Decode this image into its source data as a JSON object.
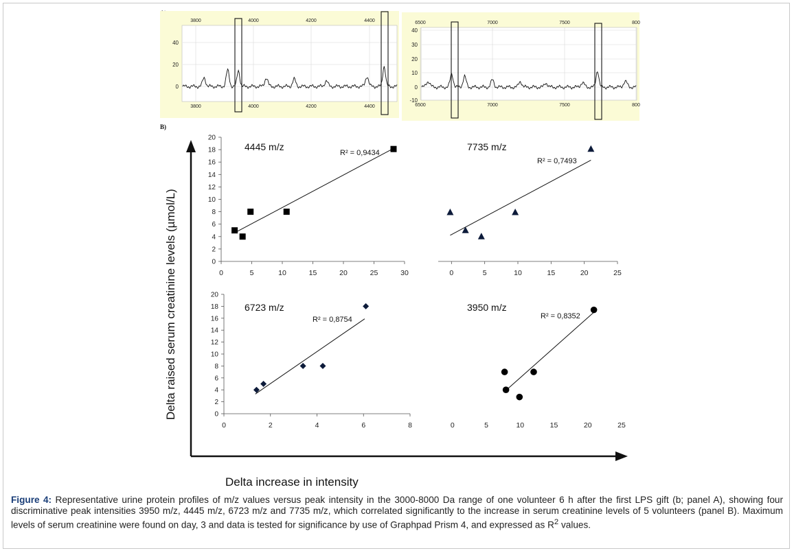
{
  "panelA": {
    "label": "A)",
    "left": {
      "xticks": [
        "3800",
        "4000",
        "4200",
        "4400"
      ],
      "yticks": [
        "40",
        "20",
        "0"
      ],
      "box_at": [
        "3950 m/z",
        "4445 m/z"
      ]
    },
    "right": {
      "xticks": [
        "6500",
        "7000",
        "7500",
        "800"
      ],
      "yticks": [
        "40",
        "30",
        "20",
        "10",
        "0",
        "-10"
      ],
      "box_at": [
        "6723 m/z",
        "7735 m/z"
      ]
    }
  },
  "panelB": {
    "label": "B)",
    "ylabel": "Delta raised serum creatinine levels (µmol/L)",
    "xlabel": "Delta increase in intensity"
  },
  "chart_data": [
    {
      "type": "scatter",
      "title": "4445 m/z",
      "r2_label": "R² = 0,9434",
      "marker": "square",
      "x": [
        2.2,
        3.5,
        4.8,
        10.7,
        28.2
      ],
      "y": [
        5,
        4,
        8,
        8,
        18.1
      ],
      "fit": [
        [
          2.2,
          4.6
        ],
        [
          28.2,
          18.2
        ]
      ],
      "xlim": [
        0,
        30
      ],
      "ylim": [
        0,
        20
      ],
      "xticks": [
        0,
        5,
        10,
        15,
        20,
        25,
        30
      ],
      "yticks": [
        0,
        2,
        4,
        6,
        8,
        10,
        12,
        14,
        16,
        18,
        20
      ]
    },
    {
      "type": "scatter",
      "title": "7735 m/z",
      "r2_label": "R² = 0,7493",
      "marker": "triangle",
      "x": [
        -0.2,
        2.1,
        4.5,
        9.6,
        21.0
      ],
      "y": [
        7.9,
        5.0,
        4.0,
        7.9,
        18.1
      ],
      "fit": [
        [
          -0.2,
          4.2
        ],
        [
          21.0,
          16.3
        ]
      ],
      "xlim": [
        -2,
        25
      ],
      "ylim": [
        0,
        20
      ],
      "xticks": [
        0,
        5,
        10,
        15,
        20,
        25
      ]
    },
    {
      "type": "scatter",
      "title": "6723 m/z",
      "r2_label": "R² = 0,8754",
      "marker": "diamond",
      "x": [
        1.4,
        1.7,
        3.4,
        4.25,
        6.1
      ],
      "y": [
        4,
        5,
        8,
        8,
        18
      ],
      "fit": [
        [
          1.35,
          3.3
        ],
        [
          6.05,
          15.9
        ]
      ],
      "xlim": [
        0,
        8
      ],
      "ylim": [
        0,
        20
      ],
      "xticks": [
        0,
        2,
        4,
        6,
        8
      ],
      "yticks": [
        0,
        2,
        4,
        6,
        8,
        10,
        12,
        14,
        16,
        18,
        20
      ]
    },
    {
      "type": "scatter",
      "title": "3950 m/z",
      "r2_label": "R² = 0,8352",
      "marker": "circle",
      "x": [
        7.7,
        7.9,
        9.9,
        12.0,
        20.9
      ],
      "y": [
        7,
        4,
        2.8,
        7,
        17.4
      ],
      "fit": [
        [
          7.7,
          3.7
        ],
        [
          20.9,
          17.0
        ]
      ],
      "xlim": [
        -1.2,
        25
      ],
      "ylim": [
        0,
        20
      ],
      "xticks": [
        0,
        5,
        10,
        15,
        20,
        25
      ]
    }
  ],
  "caption": {
    "lead": "Figure 4:",
    "text": " Representative urine protein profiles of m/z values versus peak intensity in the 3000-8000 Da range of one volunteer 6 h after the first LPS gift (b; panel A), showing four discriminative peak intensities 3950 m/z, 4445 m/z, 6723 m/z and 7735 m/z, which correlated significantly to the increase in serum creatinine levels of 5 volunteers (panel B). Maximum levels of serum creatinine were found on day, 3 and data is tested for significance by use of Graphpad Prism 4, and expressed as R",
    "sup": "2",
    "tail": " values."
  }
}
